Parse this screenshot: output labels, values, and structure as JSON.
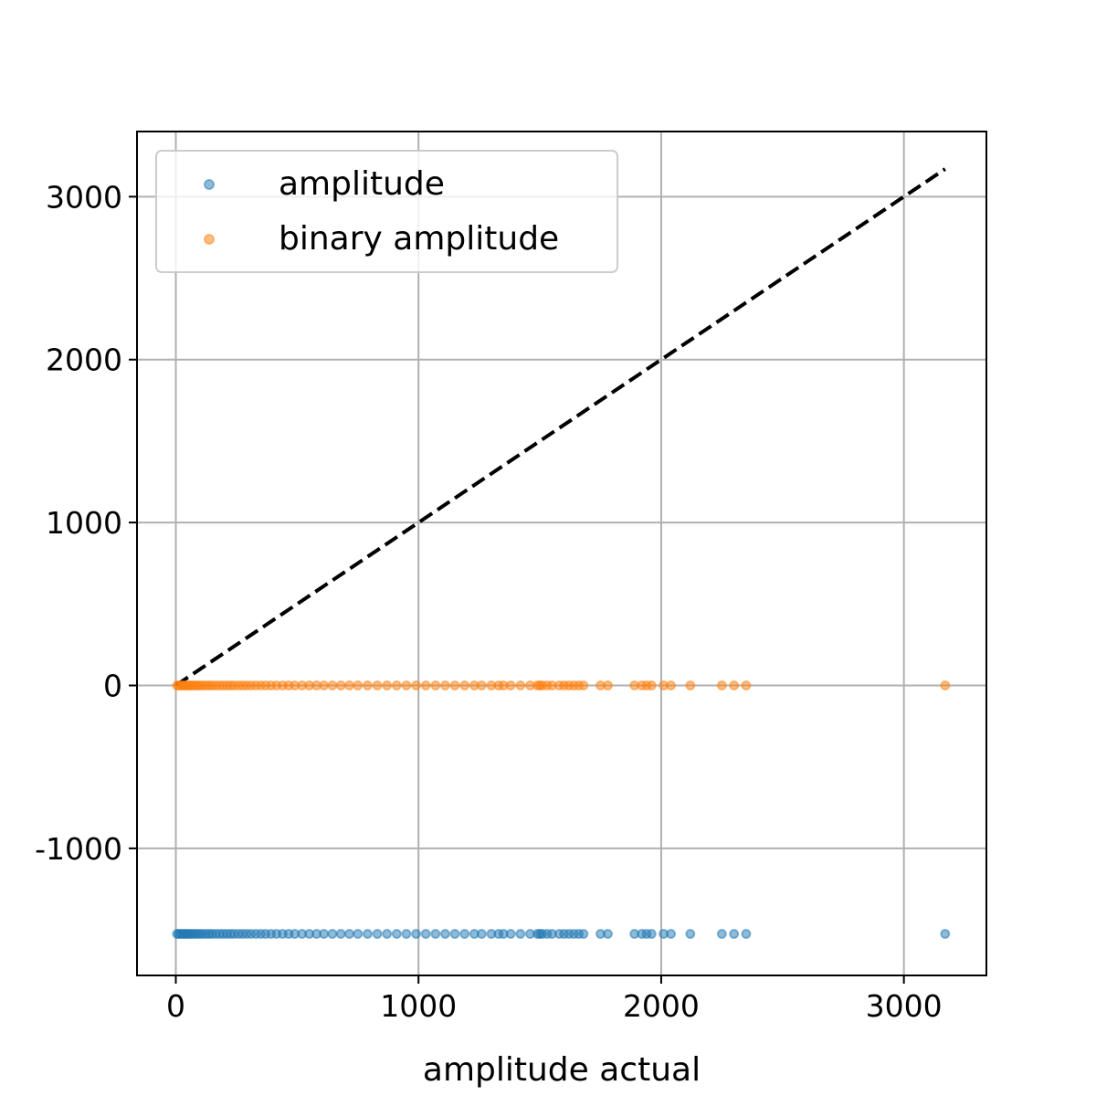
{
  "chart_data": {
    "type": "scatter",
    "title": "",
    "xlabel": "amplitude actual",
    "ylabel": "",
    "xlim": [
      -160,
      3340
    ],
    "ylim": [
      -1780,
      3400
    ],
    "xticks": [
      0,
      1000,
      2000,
      3000
    ],
    "yticks": [
      -1000,
      0,
      1000,
      2000,
      3000
    ],
    "xtick_labels": [
      "0",
      "1000",
      "2000",
      "3000"
    ],
    "ytick_labels": [
      "-1000",
      "0",
      "1000",
      "2000",
      "3000"
    ],
    "grid": true,
    "legend_position": "upper-left",
    "reference_line": {
      "style": "dashed",
      "color": "#000000",
      "x": [
        0,
        3170
      ],
      "y": [
        0,
        3170
      ]
    },
    "series": [
      {
        "name": "amplitude",
        "color": "#1f77b4",
        "y_constant": -1525,
        "x": [
          5,
          12,
          20,
          28,
          36,
          44,
          52,
          60,
          70,
          80,
          90,
          100,
          112,
          125,
          138,
          150,
          165,
          180,
          195,
          210,
          225,
          240,
          258,
          275,
          292,
          310,
          330,
          350,
          370,
          392,
          415,
          440,
          465,
          490,
          520,
          550,
          580,
          610,
          645,
          680,
          715,
          750,
          790,
          830,
          870,
          910,
          950,
          990,
          1030,
          1070,
          1110,
          1150,
          1190,
          1230,
          1260,
          1300,
          1330,
          1350,
          1380,
          1420,
          1460,
          1490,
          1500,
          1510,
          1530,
          1550,
          1580,
          1600,
          1620,
          1640,
          1660,
          1680,
          1750,
          1780,
          1890,
          1920,
          1940,
          1960,
          2010,
          2040,
          2120,
          2250,
          2300,
          2350,
          3170
        ]
      },
      {
        "name": "binary amplitude",
        "color": "#ff7f0e",
        "y_constant": 0,
        "x": [
          5,
          12,
          20,
          28,
          36,
          44,
          52,
          60,
          70,
          80,
          90,
          100,
          112,
          125,
          138,
          150,
          165,
          180,
          195,
          210,
          225,
          240,
          258,
          275,
          292,
          310,
          330,
          350,
          370,
          392,
          415,
          440,
          465,
          490,
          520,
          550,
          580,
          610,
          645,
          680,
          715,
          750,
          790,
          830,
          870,
          910,
          950,
          990,
          1030,
          1070,
          1110,
          1150,
          1190,
          1230,
          1260,
          1300,
          1330,
          1350,
          1380,
          1420,
          1460,
          1490,
          1500,
          1510,
          1530,
          1550,
          1580,
          1600,
          1620,
          1640,
          1660,
          1680,
          1750,
          1780,
          1890,
          1920,
          1940,
          1960,
          2010,
          2040,
          2120,
          2250,
          2300,
          2350,
          3170
        ]
      }
    ]
  }
}
